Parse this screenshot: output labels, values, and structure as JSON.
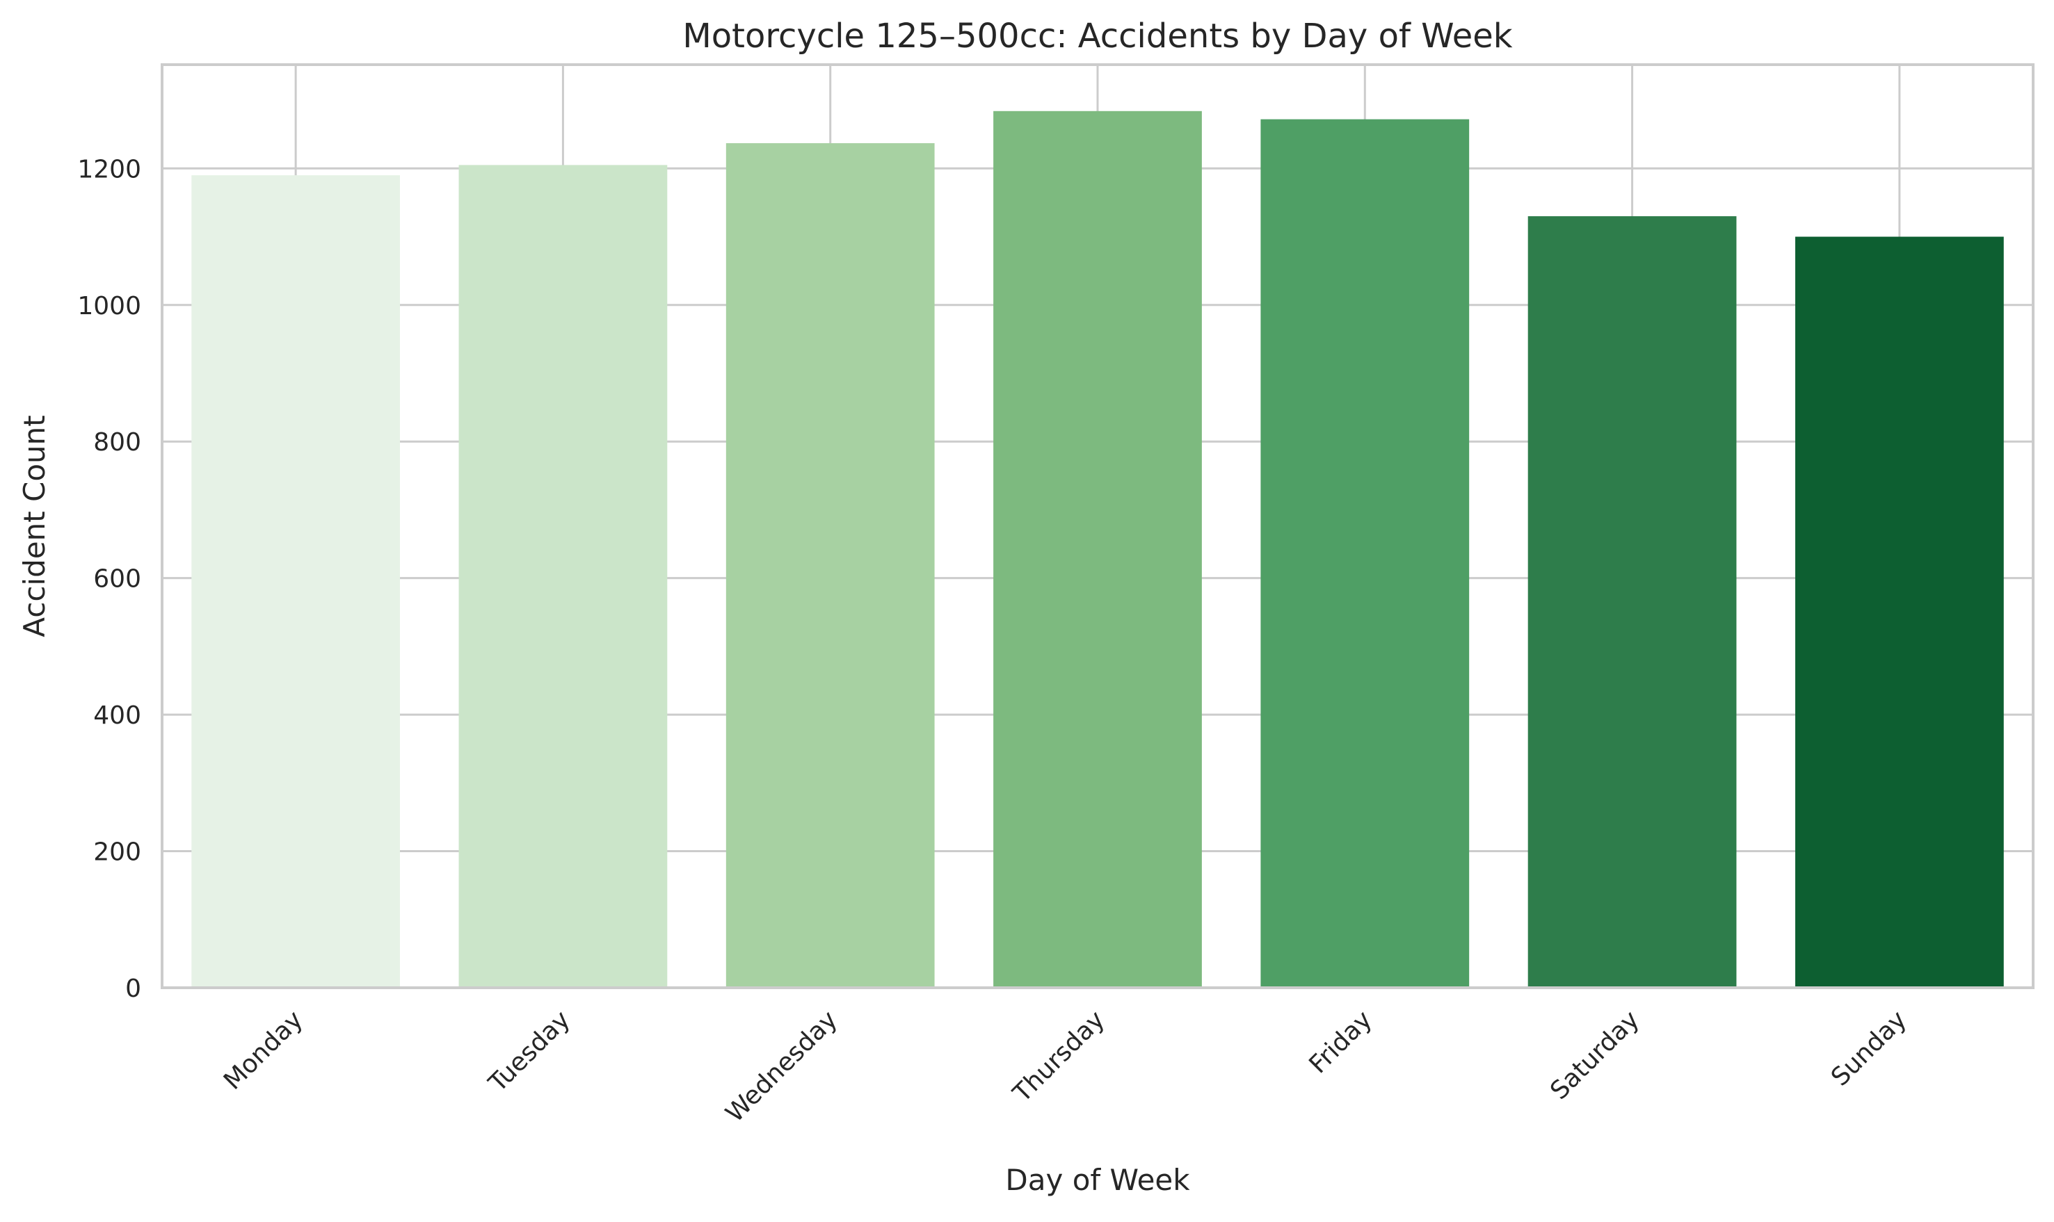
{
  "chart_data": {
    "type": "bar",
    "title": "Motorcycle 125–500cc: Accidents by Day of Week",
    "xlabel": "Day of Week",
    "ylabel": "Accident Count",
    "categories": [
      "Monday",
      "Tuesday",
      "Wednesday",
      "Thursday",
      "Friday",
      "Saturday",
      "Sunday"
    ],
    "values": [
      1190,
      1205,
      1237,
      1284,
      1272,
      1130,
      1100
    ],
    "colors": [
      "#e6f2e6",
      "#cbe5c9",
      "#a7d1a2",
      "#7dba7f",
      "#4f9f65",
      "#2e7d4b",
      "#0d5f31"
    ],
    "ylim": [
      0,
      1352
    ],
    "yticks": [
      0,
      200,
      400,
      600,
      800,
      1000,
      1200
    ],
    "grid": true,
    "legend": "none"
  }
}
